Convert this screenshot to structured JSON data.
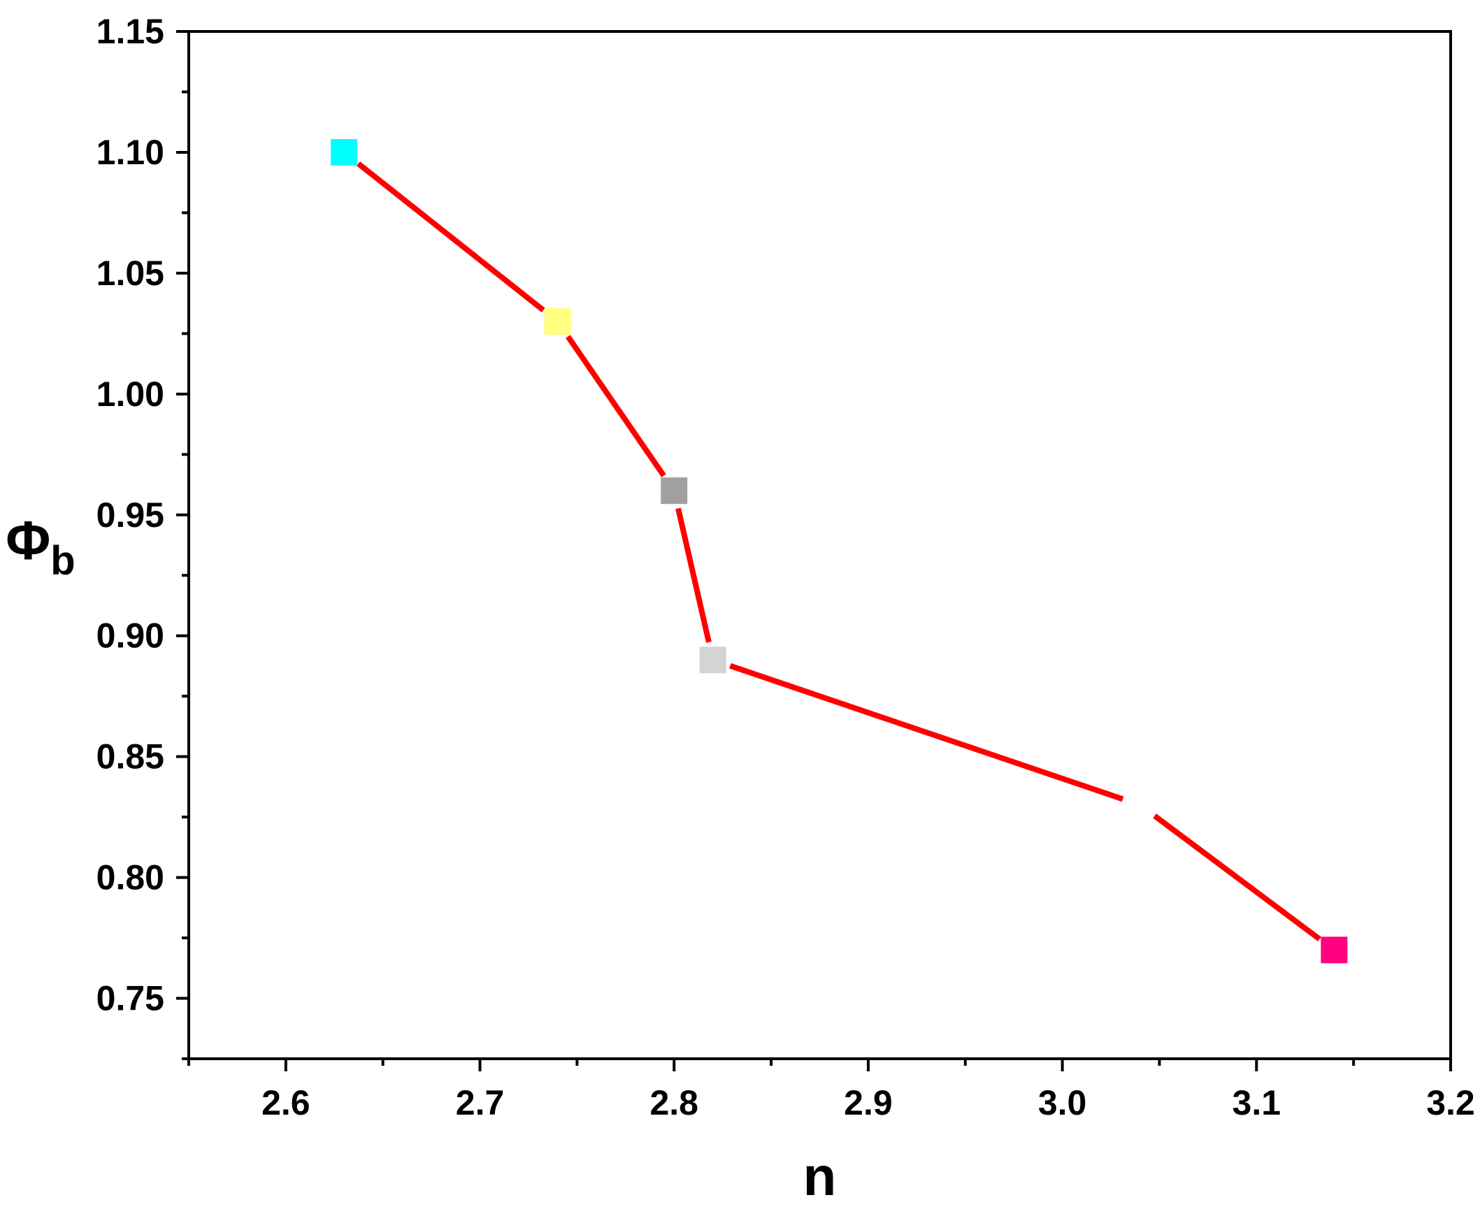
{
  "chart_data": {
    "type": "line",
    "xlabel": "n",
    "ylabel_main": "Φ",
    "ylabel_sub": "b",
    "xlim": [
      2.55,
      3.2
    ],
    "ylim": [
      0.725,
      1.15
    ],
    "xticks": [
      2.6,
      2.7,
      2.8,
      2.9,
      3.0,
      3.1,
      3.2
    ],
    "xtick_labels": [
      "2.6",
      "2.7",
      "2.8",
      "2.9",
      "3.0",
      "3.1",
      "3.2"
    ],
    "yticks": [
      0.75,
      0.8,
      0.85,
      0.9,
      0.95,
      1.0,
      1.05,
      1.1,
      1.15
    ],
    "ytick_labels": [
      "0.75",
      "0.80",
      "0.85",
      "0.90",
      "0.95",
      "1.00",
      "1.05",
      "1.10",
      "1.15"
    ],
    "grid": false,
    "line_color": "#ff0000",
    "series": [
      {
        "points": [
          {
            "x": 2.63,
            "y": 1.1,
            "color": "#00ffff"
          },
          {
            "x": 2.74,
            "y": 1.03,
            "color": "#ffff80"
          },
          {
            "x": 2.8,
            "y": 0.96,
            "color": "#a0a0a0"
          },
          {
            "x": 2.82,
            "y": 0.89,
            "color": "#d4d4d4"
          },
          {
            "x": 3.04,
            "y": 0.83,
            "color": "#ffffff"
          },
          {
            "x": 3.14,
            "y": 0.77,
            "color": "#ff0080"
          }
        ]
      }
    ]
  }
}
